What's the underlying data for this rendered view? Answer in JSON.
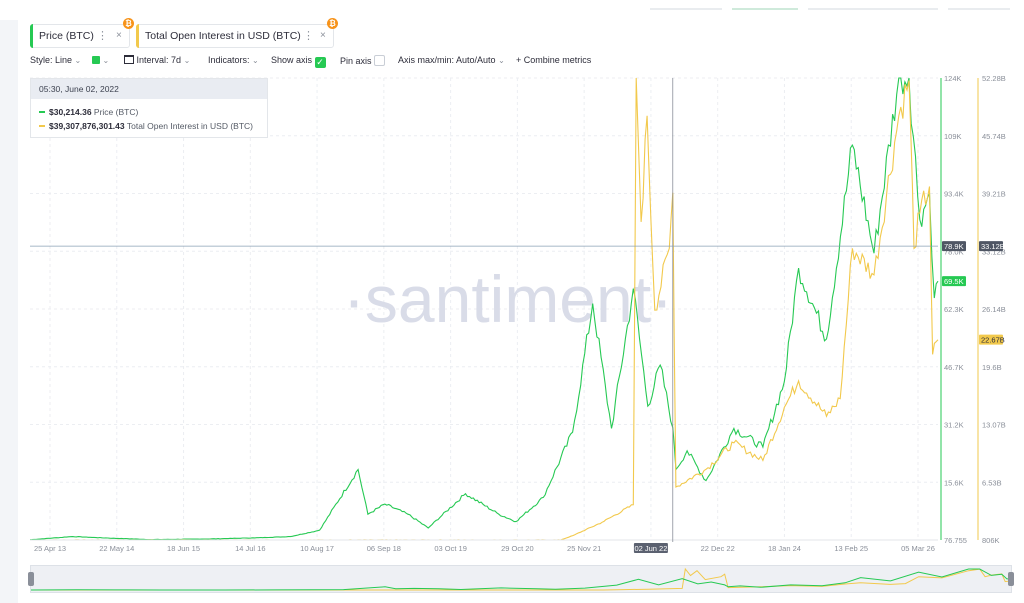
{
  "tabs": [
    {
      "label": "Price (BTC)",
      "accent": "#26c953",
      "badge": "₿"
    },
    {
      "label": "Total Open Interest in USD (BTC)",
      "accent": "#f2c94c",
      "badge": "₿"
    }
  ],
  "icons": {
    "menu": "⋮",
    "close": "×",
    "chevron": "⌄",
    "check": "✓"
  },
  "toolbar": {
    "style_label": "Style: Line",
    "interval_label": "Interval: 7d",
    "indicators_label": "Indicators:",
    "show_axis_label": "Show axis",
    "pin_axis_label": "Pin axis",
    "axis_mode_label": "Axis max/min: Auto/Auto",
    "combine_label": "+ Combine metrics"
  },
  "tooltip": {
    "date": "05:30, June 02, 2022",
    "price_value": "$30,214.36",
    "price_name": "Price (BTC)",
    "oi_value": "$39,307,876,301.43",
    "oi_name": "Total Open Interest in USD (BTC)"
  },
  "watermark": "·santiment·",
  "chart_data": {
    "type": "line",
    "x_ticks": [
      "25 Apr 13",
      "22 May 14",
      "18 Jun 15",
      "14 Jul 16",
      "10 Aug 17",
      "06 Sep 18",
      "03 Oct 19",
      "29 Oct 20",
      "25 Nov 21",
      "02 Jun 22",
      "22 Dec 22",
      "18 Jan 24",
      "13 Feb 25",
      "05 Mar 26"
    ],
    "highlighted_x": "02 Jun 22",
    "left_axis_ticks": [
      "124K",
      "109K",
      "93.4K",
      "78.0K",
      "62.3K",
      "46.7K",
      "31.2K",
      "15.6K",
      "76.755"
    ],
    "right_axis_ticks": [
      "52.28B",
      "45.74B",
      "39.21B",
      "33.12B",
      "26.14B",
      "19.6B",
      "13.07B",
      "6.53B",
      "806K"
    ],
    "left_axis_range": [
      76.755,
      124000
    ],
    "right_axis_range": [
      806000,
      52280000000
    ],
    "crosshair_labels": {
      "left": "78.9K",
      "right": "33.12B"
    },
    "last_value_labels": {
      "price": "69.5K",
      "open_interest": "22.67B"
    },
    "series": [
      {
        "name": "Price (BTC)",
        "axis": "left",
        "color": "#26c953",
        "points": [
          [
            "2013-04-25",
            150
          ],
          [
            "2013-12-01",
            1000
          ],
          [
            "2014-06-01",
            600
          ],
          [
            "2015-01-15",
            200
          ],
          [
            "2015-11-01",
            350
          ],
          [
            "2016-07-01",
            650
          ],
          [
            "2017-01-01",
            1000
          ],
          [
            "2017-06-01",
            2700
          ],
          [
            "2017-12-17",
            19000
          ],
          [
            "2018-02-06",
            7000
          ],
          [
            "2018-05-05",
            9700
          ],
          [
            "2018-09-01",
            7000
          ],
          [
            "2018-12-15",
            3300
          ],
          [
            "2019-06-26",
            12500
          ],
          [
            "2019-12-15",
            7000
          ],
          [
            "2020-03-13",
            5000
          ],
          [
            "2020-08-01",
            11500
          ],
          [
            "2020-12-31",
            29000
          ],
          [
            "2021-04-14",
            63500
          ],
          [
            "2021-07-20",
            30000
          ],
          [
            "2021-11-10",
            67500
          ],
          [
            "2022-01-24",
            36000
          ],
          [
            "2022-03-29",
            47000
          ],
          [
            "2022-06-02",
            30200
          ],
          [
            "2022-06-18",
            19000
          ],
          [
            "2022-08-15",
            24000
          ],
          [
            "2022-11-21",
            16000
          ],
          [
            "2023-04-14",
            30000
          ],
          [
            "2023-09-11",
            25000
          ],
          [
            "2023-12-31",
            42500
          ],
          [
            "2024-03-14",
            73000
          ],
          [
            "2024-08-05",
            54000
          ],
          [
            "2024-12-17",
            106000
          ],
          [
            "2025-04-08",
            77000
          ],
          [
            "2025-08-14",
            124000
          ],
          [
            "2025-10-06",
            124000
          ],
          [
            "2025-12-01",
            86000
          ],
          [
            "2026-01-20",
            93000
          ],
          [
            "2026-02-14",
            65000
          ],
          [
            "2026-03-05",
            69500
          ]
        ]
      },
      {
        "name": "Total Open Interest in USD (BTC)",
        "axis": "right",
        "color": "#f2c94c",
        "points": [
          [
            "2013-04-25",
            806000
          ],
          [
            "2020-10-29",
            806000
          ],
          [
            "2021-01-01",
            500000000
          ],
          [
            "2021-06-01",
            2000000000
          ],
          [
            "2021-11-10",
            4000000000
          ],
          [
            "2021-11-25",
            52280000000
          ],
          [
            "2021-12-20",
            36000000000
          ],
          [
            "2022-01-20",
            48000000000
          ],
          [
            "2022-03-01",
            26000000000
          ],
          [
            "2022-05-15",
            33000000000
          ],
          [
            "2022-06-02",
            39300000000
          ],
          [
            "2022-06-18",
            6000000000
          ],
          [
            "2022-11-21",
            8000000000
          ],
          [
            "2023-04-14",
            11000000000
          ],
          [
            "2023-09-11",
            9000000000
          ],
          [
            "2023-12-31",
            15000000000
          ],
          [
            "2024-03-14",
            18000000000
          ],
          [
            "2024-08-05",
            14000000000
          ],
          [
            "2024-10-15",
            16000000000
          ],
          [
            "2024-12-17",
            33000000000
          ],
          [
            "2025-04-08",
            30000000000
          ],
          [
            "2025-08-14",
            48000000000
          ],
          [
            "2025-10-06",
            52000000000
          ],
          [
            "2025-11-01",
            33000000000
          ],
          [
            "2025-12-01",
            37000000000
          ],
          [
            "2026-01-20",
            40000000000
          ],
          [
            "2026-02-05",
            21000000000
          ],
          [
            "2026-03-05",
            22670000000
          ]
        ]
      }
    ],
    "grid": true,
    "legend": "top-left"
  }
}
